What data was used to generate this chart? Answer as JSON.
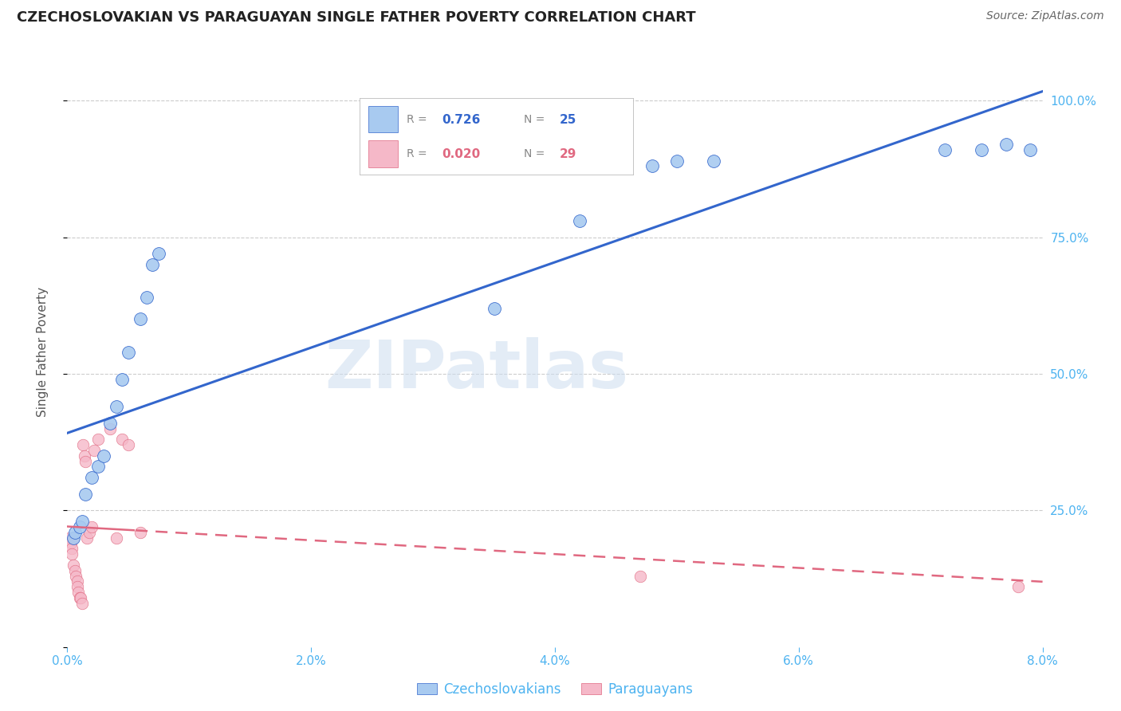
{
  "title": "CZECHOSLOVAKIAN VS PARAGUAYAN SINGLE FATHER POVERTY CORRELATION CHART",
  "source": "Source: ZipAtlas.com",
  "ylabel": "Single Father Poverty",
  "watermark": "ZIPatlas",
  "R_blue": "0.726",
  "N_blue": "25",
  "R_pink": "0.020",
  "N_pink": "29",
  "label_blue": "Czechoslovakians",
  "label_pink": "Paraguayans",
  "blue_fill": "#a8caf0",
  "blue_line": "#3366cc",
  "pink_fill": "#f5b8c8",
  "pink_line": "#e06880",
  "axis_color": "#4db3f0",
  "grid_color": "#cccccc",
  "blue_x": [
    0.05,
    0.06,
    0.1,
    0.12,
    0.15,
    0.2,
    0.25,
    0.3,
    0.35,
    0.4,
    0.45,
    0.5,
    0.6,
    0.65,
    0.7,
    0.75,
    3.5,
    4.2,
    4.8,
    5.0,
    5.3,
    7.2,
    7.5,
    7.7,
    7.9
  ],
  "blue_y": [
    0.2,
    0.21,
    0.22,
    0.23,
    0.28,
    0.31,
    0.33,
    0.35,
    0.41,
    0.44,
    0.49,
    0.54,
    0.6,
    0.64,
    0.7,
    0.72,
    0.62,
    0.78,
    0.88,
    0.89,
    0.89,
    0.91,
    0.91,
    0.92,
    0.91
  ],
  "pink_x": [
    0.02,
    0.03,
    0.04,
    0.04,
    0.05,
    0.05,
    0.06,
    0.07,
    0.08,
    0.08,
    0.09,
    0.1,
    0.11,
    0.12,
    0.13,
    0.14,
    0.15,
    0.16,
    0.18,
    0.2,
    0.22,
    0.25,
    0.35,
    0.4,
    0.45,
    0.5,
    0.6,
    4.7,
    7.8
  ],
  "pink_y": [
    0.2,
    0.19,
    0.18,
    0.17,
    0.2,
    0.15,
    0.14,
    0.13,
    0.12,
    0.11,
    0.1,
    0.09,
    0.09,
    0.08,
    0.37,
    0.35,
    0.34,
    0.2,
    0.21,
    0.22,
    0.36,
    0.38,
    0.4,
    0.2,
    0.38,
    0.37,
    0.21,
    0.13,
    0.11
  ],
  "xmin": 0.0,
  "xmax": 8.0,
  "ymin": 0.0,
  "ymax": 1.08
}
